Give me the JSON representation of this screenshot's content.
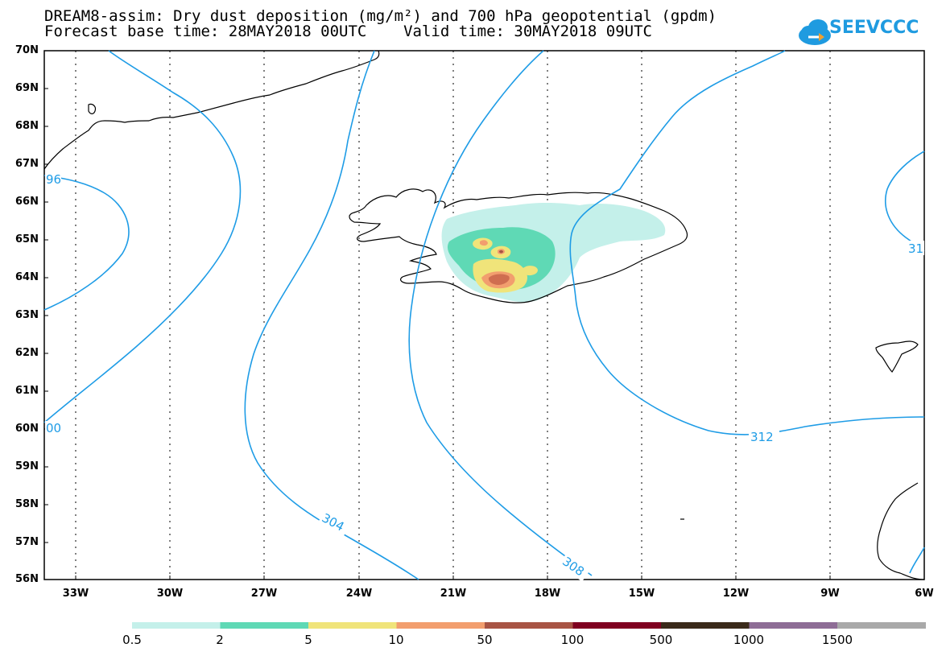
{
  "title_line1": "DREAM8-assim: Dry dust deposition (mg/m²) and 700 hPa geopotential (gpdm)",
  "title_line2": "Forecast base time: 28MAY2018 00UTC    Valid time: 30MAY2018 09UTC",
  "logo_text": "SEEVCCC",
  "lat_labels": [
    "70N",
    "69N",
    "68N",
    "67N",
    "66N",
    "65N",
    "64N",
    "63N",
    "62N",
    "61N",
    "60N",
    "59N",
    "58N",
    "57N",
    "56N"
  ],
  "lon_labels": [
    "33W",
    "30W",
    "27W",
    "24W",
    "21W",
    "18W",
    "15W",
    "12W",
    "9W",
    "6W"
  ],
  "contour_labels": {
    "c296": "96",
    "c300": "00",
    "c304": "304",
    "c308": "308",
    "c312": "312",
    "c31_right": "31"
  },
  "colorbar": {
    "labels": [
      "0.5",
      "2",
      "5",
      "10",
      "50",
      "100",
      "500",
      "1000",
      "1500"
    ],
    "colors": [
      "#c4f0ea",
      "#5fd9b5",
      "#f0e47a",
      "#f29e6e",
      "#a85444",
      "#800020",
      "#3a2a1a",
      "#8e6d96",
      "#a9a9a9"
    ]
  },
  "colors": {
    "contour": "#1e9ce6",
    "coast": "#000000"
  }
}
